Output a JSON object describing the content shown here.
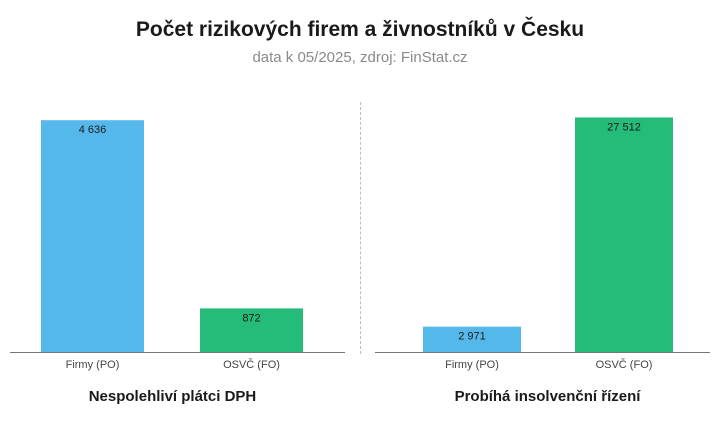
{
  "title": "Počet rizikových firem a živnostníků v Česku",
  "subtitle": "data k 05/2025, zdroj: FinStat.cz",
  "colors": {
    "po": "#55b8ea",
    "fo": "#25bb78"
  },
  "chart_data": [
    {
      "type": "bar",
      "title": "Nespolehliví plátci DPH",
      "categories": [
        "Firmy (PO)",
        "OSVČ (FO)"
      ],
      "values": [
        4636,
        872
      ],
      "value_labels": [
        "4 636",
        "872"
      ],
      "ylim": [
        0,
        5200
      ],
      "grid": false
    },
    {
      "type": "bar",
      "title": "Probíhá insolvenční řízení",
      "categories": [
        "Firmy (PO)",
        "OSVČ (FO)"
      ],
      "values": [
        2971,
        27512
      ],
      "value_labels": [
        "2 971",
        "27 512"
      ],
      "ylim": [
        0,
        30500
      ],
      "grid": false
    }
  ]
}
